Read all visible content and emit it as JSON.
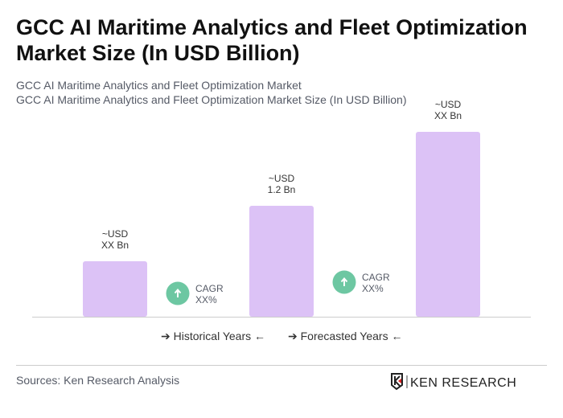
{
  "title": "GCC AI Maritime Analytics and Fleet Optimization Market Size (In USD Billion)",
  "subtitle_1": "GCC AI Maritime Analytics and Fleet Optimization Market",
  "subtitle_2": "GCC AI Maritime Analytics and Fleet Optimization Market Size (In USD Billion)",
  "chart_data": {
    "type": "bar",
    "categories": [
      "",
      "",
      ""
    ],
    "values": [
      0.6,
      1.2,
      2.0
    ],
    "data_labels": [
      [
        "~USD",
        "XX Bn"
      ],
      [
        "~USD",
        "1.2 Bn"
      ],
      [
        "~USD",
        "XX Bn"
      ]
    ],
    "cagr_labels": [
      [
        "CAGR",
        "XX%"
      ],
      [
        "CAGR",
        "XX%"
      ]
    ],
    "bar_color": "#dcc2f6",
    "cagr_icon_color": "#6dc7a2",
    "grid": false,
    "ylim": [
      0,
      2.1
    ]
  },
  "legend": {
    "historical": "Historical Years",
    "forecasted": "Forecasted Years"
  },
  "sources": "Sources: Ken Research Analysis",
  "logo_text": "KEN RESEARCH"
}
